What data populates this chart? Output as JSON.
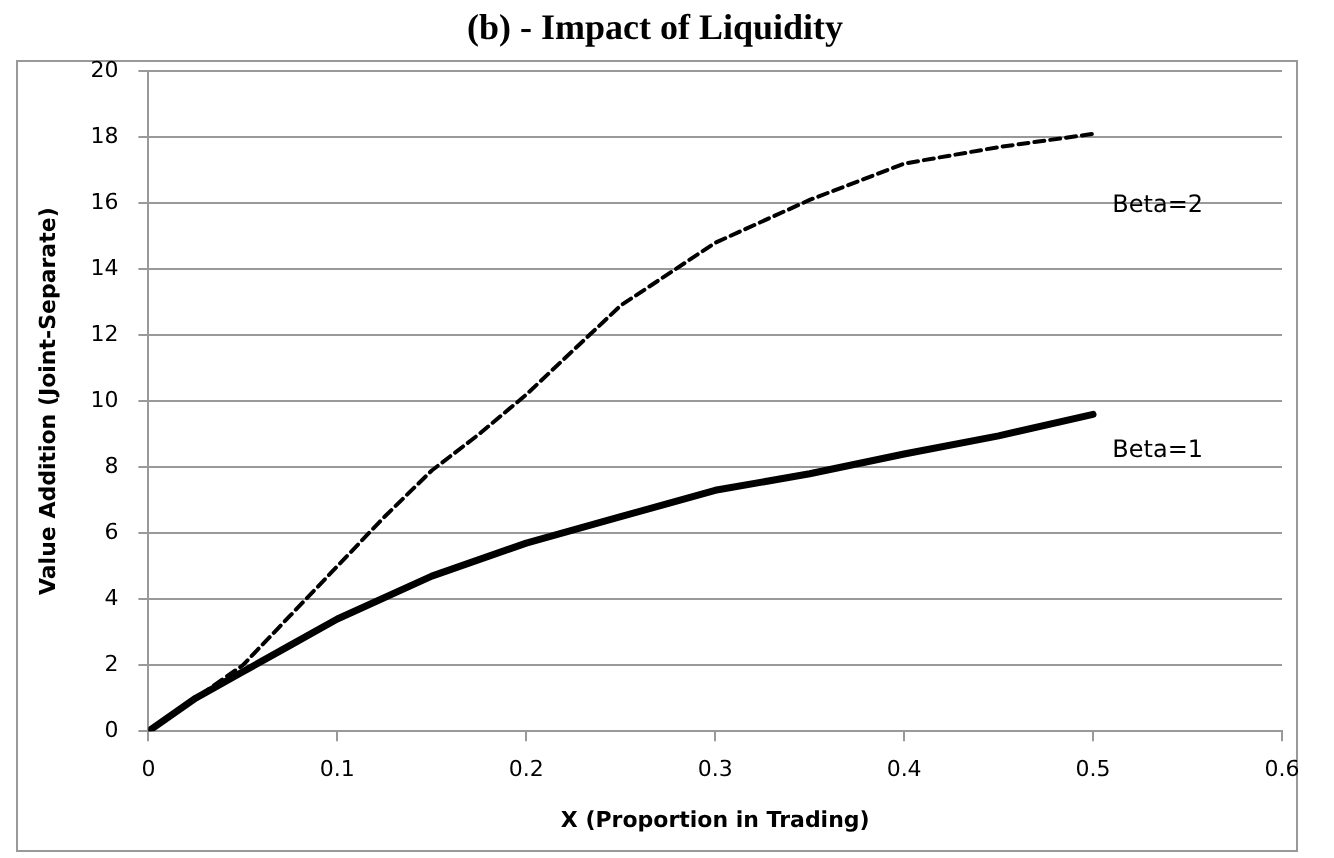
{
  "chart_data": {
    "type": "line",
    "title": "(b) - Impact of Liquidity",
    "xlabel": "X (Proportion in Trading)",
    "ylabel": "Value Addition (Joint-Separate)",
    "xlim": [
      0,
      0.6
    ],
    "xticks": [
      0,
      0.1,
      0.2,
      0.3,
      0.4,
      0.5,
      0.6
    ],
    "ylim": [
      0,
      20
    ],
    "yticks": [
      0,
      2,
      4,
      6,
      8,
      10,
      12,
      14,
      16,
      18,
      20
    ],
    "grid": "y",
    "legend": false,
    "marker": "none",
    "series": [
      {
        "name": "Beta=2",
        "color": "#000000",
        "line_style": "dashed",
        "x": [
          0,
          0.025,
          0.05,
          0.075,
          0.1,
          0.125,
          0.15,
          0.175,
          0.2,
          0.25,
          0.3,
          0.35,
          0.4,
          0.45,
          0.5
        ],
        "values": [
          0,
          1.0,
          2.0,
          3.5,
          5.0,
          6.5,
          7.9,
          9.0,
          10.2,
          12.9,
          14.8,
          16.1,
          17.2,
          17.7,
          18.1
        ]
      },
      {
        "name": "Beta=1",
        "color": "#000000",
        "line_style": "solid",
        "x": [
          0,
          0.025,
          0.05,
          0.075,
          0.1,
          0.15,
          0.2,
          0.25,
          0.3,
          0.35,
          0.4,
          0.45,
          0.5
        ],
        "values": [
          0,
          1.0,
          1.8,
          2.6,
          3.4,
          4.7,
          5.7,
          6.5,
          7.3,
          7.8,
          8.4,
          8.95,
          9.6
        ]
      }
    ]
  }
}
